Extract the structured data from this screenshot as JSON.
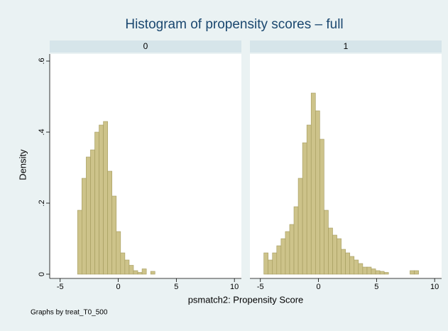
{
  "title": "Histogram of propensity scores – full",
  "x_label": "psmatch2: Propensity Score",
  "y_label": "Density",
  "note": "Graphs by treat_T0_500",
  "chart_data": [
    {
      "type": "histogram",
      "panel_title": "0",
      "color": "#cdc38a",
      "bins": [
        -3.5,
        -3.13,
        -2.76,
        -2.39,
        -2.02,
        -1.65,
        -1.28,
        -0.91,
        -0.54,
        -0.17,
        0.2,
        0.57,
        0.94,
        1.31,
        1.68,
        2.05,
        2.42,
        2.79,
        3.16
      ],
      "values": [
        0.18,
        0.27,
        0.33,
        0.35,
        0.4,
        0.42,
        0.43,
        0.29,
        0.22,
        0.12,
        0.06,
        0.04,
        0.025,
        0.01,
        0.005,
        0.015,
        0,
        0.008
      ],
      "xlim": [
        -5.9,
        10.6
      ],
      "ylim": [
        -0.012,
        0.62
      ],
      "xticks": [
        -5,
        0,
        5,
        10
      ],
      "yticks": [
        0,
        {
          "value": 0.2,
          "label": ".2"
        },
        {
          "value": 0.4,
          "label": ".4"
        },
        {
          "value": 0.6,
          "label": ".6"
        }
      ]
    },
    {
      "type": "histogram",
      "panel_title": "1",
      "color": "#cdc38a",
      "bins": [
        -4.7,
        -4.33,
        -3.96,
        -3.59,
        -3.22,
        -2.85,
        -2.48,
        -2.11,
        -1.74,
        -1.37,
        -1.0,
        -0.63,
        -0.26,
        0.11,
        0.48,
        0.85,
        1.22,
        1.59,
        1.96,
        2.33,
        2.7,
        3.07,
        3.44,
        3.81,
        4.18,
        4.55,
        4.92,
        5.29,
        5.66,
        6.03,
        6.4,
        6.77,
        7.14,
        7.51,
        7.88,
        8.25,
        8.62
      ],
      "values": [
        0.06,
        0.04,
        0.06,
        0.08,
        0.1,
        0.12,
        0.14,
        0.19,
        0.27,
        0.37,
        0.42,
        0.51,
        0.46,
        0.38,
        0.18,
        0.13,
        0.11,
        0.1,
        0.07,
        0.06,
        0.05,
        0.04,
        0.03,
        0.02,
        0.02,
        0.015,
        0.01,
        0.008,
        0.005,
        0,
        0,
        0,
        0,
        0,
        0.01,
        0.01
      ],
      "xlim": [
        -5.9,
        10.6
      ],
      "ylim": [
        -0.012,
        0.62
      ],
      "xticks": [
        -5,
        0,
        5,
        10
      ]
    }
  ]
}
